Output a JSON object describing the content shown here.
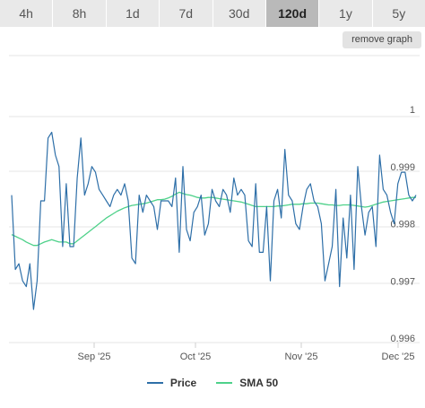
{
  "tabs": [
    {
      "label": "4h",
      "active": false
    },
    {
      "label": "8h",
      "active": false
    },
    {
      "label": "1d",
      "active": false
    },
    {
      "label": "7d",
      "active": false
    },
    {
      "label": "30d",
      "active": false
    },
    {
      "label": "120d",
      "active": true
    },
    {
      "label": "1y",
      "active": false
    },
    {
      "label": "5y",
      "active": false
    }
  ],
  "remove_graph_label": "remove graph",
  "legend": {
    "price_label": "Price",
    "sma_label": "SMA 50"
  },
  "colors": {
    "price": "#2e6fa8",
    "sma": "#4ed18a",
    "grid": "#e4e4e4",
    "active_tab": "#b9b9b9"
  },
  "chart_data": {
    "type": "line",
    "x_tick_labels": [
      "Sep '25",
      "Oct '25",
      "Nov '25",
      "Dec '25"
    ],
    "y_tick_labels": [
      "0.996",
      "0.997",
      "0.998",
      "0.999",
      "1"
    ],
    "ylim": [
      0.996,
      1.0
    ],
    "grid": true,
    "legend_position": "bottom",
    "series": [
      {
        "name": "Price",
        "values": [
          0.9985,
          0.9972,
          0.9973,
          0.997,
          0.9969,
          0.9973,
          0.9965,
          0.997,
          0.9984,
          0.9984,
          0.9995,
          0.9996,
          0.9992,
          0.999,
          0.9976,
          0.9987,
          0.9976,
          0.9976,
          0.9988,
          0.9995,
          0.9985,
          0.9987,
          0.999,
          0.9989,
          0.9986,
          0.9985,
          0.9984,
          0.9983,
          0.9985,
          0.9986,
          0.9985,
          0.9987,
          0.9984,
          0.9974,
          0.9973,
          0.9985,
          0.9982,
          0.9985,
          0.9984,
          0.9983,
          0.9979,
          0.9984,
          0.9984,
          0.9984,
          0.9983,
          0.9988,
          0.9975,
          0.999,
          0.9979,
          0.9977,
          0.9982,
          0.9983,
          0.9985,
          0.9978,
          0.998,
          0.9986,
          0.9984,
          0.9983,
          0.9986,
          0.9985,
          0.9982,
          0.9988,
          0.9985,
          0.9986,
          0.9985,
          0.9977,
          0.9976,
          0.9987,
          0.9975,
          0.9975,
          0.9983,
          0.997,
          0.9984,
          0.9986,
          0.9981,
          0.9993,
          0.9985,
          0.9984,
          0.998,
          0.9979,
          0.9983,
          0.9986,
          0.9987,
          0.9984,
          0.9983,
          0.998,
          0.997,
          0.9973,
          0.9976,
          0.9986,
          0.9969,
          0.9981,
          0.9974,
          0.9985,
          0.9972,
          0.999,
          0.9983,
          0.9978,
          0.9982,
          0.9983,
          0.9976,
          0.9992,
          0.9986,
          0.9985,
          0.9982,
          0.998,
          0.9987,
          0.9989,
          0.9989,
          0.9985,
          0.9984,
          0.9985
        ]
      },
      {
        "name": "SMA 50",
        "values": [
          0.99781,
          0.99778,
          0.99775,
          0.99772,
          0.99768,
          0.99765,
          0.99762,
          0.99762,
          0.99765,
          0.99768,
          0.9977,
          0.99772,
          0.9977,
          0.99768,
          0.99768,
          0.99768,
          0.99765,
          0.99765,
          0.9977,
          0.99775,
          0.9978,
          0.99785,
          0.9979,
          0.99795,
          0.998,
          0.99805,
          0.9981,
          0.99814,
          0.99818,
          0.99822,
          0.99825,
          0.99828,
          0.9983,
          0.99832,
          0.99833,
          0.99834,
          0.99835,
          0.99836,
          0.99838,
          0.9984,
          0.99842,
          0.99842,
          0.99843,
          0.99845,
          0.99848,
          0.99852,
          0.99855,
          0.99853,
          0.99851,
          0.9985,
          0.99848,
          0.99846,
          0.99845,
          0.99845,
          0.99846,
          0.99846,
          0.99845,
          0.99844,
          0.99843,
          0.99842,
          0.99841,
          0.9984,
          0.99839,
          0.99838,
          0.99836,
          0.99834,
          0.99832,
          0.9983,
          0.9983,
          0.9983,
          0.9983,
          0.9983,
          0.9983,
          0.99831,
          0.99831,
          0.99832,
          0.99833,
          0.99834,
          0.99834,
          0.99834,
          0.99835,
          0.99835,
          0.99836,
          0.99836,
          0.99836,
          0.99835,
          0.99834,
          0.99833,
          0.99833,
          0.99832,
          0.99832,
          0.99833,
          0.99833,
          0.99833,
          0.99832,
          0.99831,
          0.9983,
          0.99829,
          0.9983,
          0.99832,
          0.99834,
          0.99836,
          0.99838,
          0.99839,
          0.9984,
          0.99841,
          0.99842,
          0.99843,
          0.99844,
          0.99845,
          0.99846,
          0.99846
        ]
      }
    ]
  }
}
